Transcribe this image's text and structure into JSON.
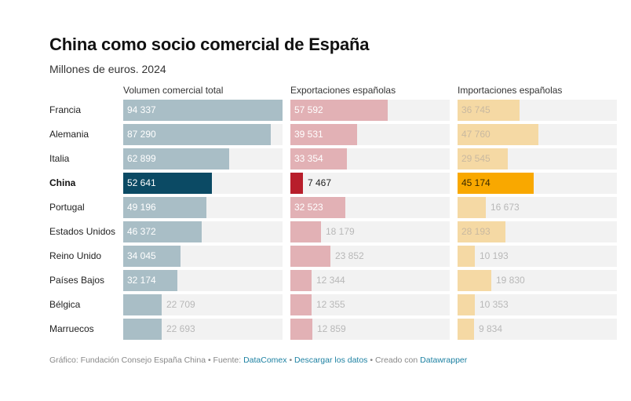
{
  "header": {
    "title": "China como socio comercial de España",
    "subtitle": "Millones de euros. 2024"
  },
  "footer": {
    "prefix": "Gráfico: Fundación Consejo España China • Fuente: ",
    "source_link": "DataComex",
    "sep1": " • ",
    "download_link": "Descargar los datos",
    "sep2": " • Creado con ",
    "tool_link": "Datawrapper"
  },
  "chart_data": {
    "type": "bar",
    "title": "China como socio comercial de España",
    "subtitle": "Millones de euros. 2024",
    "orientation": "horizontal",
    "highlight": "China",
    "categories": [
      "Francia",
      "Alemania",
      "Italia",
      "China",
      "Portugal",
      "Estados Unidos",
      "Reino Unido",
      "Países Bajos",
      "Bélgica",
      "Marruecos"
    ],
    "xlim": [
      0,
      94337
    ],
    "series": [
      {
        "name": "Volumen comercial total",
        "color": "#a9bec6",
        "highlight_color": "#0b4a64",
        "values": [
          94337,
          87290,
          62899,
          52641,
          49196,
          46372,
          34045,
          32174,
          22709,
          22693
        ],
        "labels": [
          "94 337",
          "87 290",
          "62 899",
          "52 641",
          "49 196",
          "46 372",
          "34 045",
          "32 174",
          "22 709",
          "22 693"
        ]
      },
      {
        "name": "Exportaciones españolas",
        "color": "#e2b1b5",
        "highlight_color": "#b81e2b",
        "values": [
          57592,
          39531,
          33354,
          7467,
          32523,
          18179,
          23852,
          12344,
          12355,
          12859
        ],
        "labels": [
          "57 592",
          "39 531",
          "33 354",
          "7 467",
          "32 523",
          "18 179",
          "23 852",
          "12 344",
          "12 355",
          "12 859"
        ]
      },
      {
        "name": "Importaciones españolas",
        "color": "#f5d9a4",
        "highlight_color": "#f9a800",
        "values": [
          36745,
          47760,
          29545,
          45174,
          16673,
          28193,
          10193,
          19830,
          10353,
          9834
        ],
        "labels": [
          "36 745",
          "47 760",
          "29 545",
          "45 174",
          "16 673",
          "28 193",
          "10 193",
          "19 830",
          "10 353",
          "9 834"
        ]
      }
    ]
  }
}
